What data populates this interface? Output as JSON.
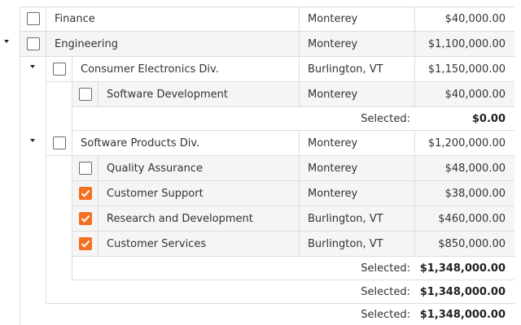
{
  "rows": {
    "finance": {
      "name": "Finance",
      "location": "Monterey",
      "budget": "$40,000.00"
    },
    "engineering": {
      "name": "Engineering",
      "location": "Monterey",
      "budget": "$1,100,000.00"
    },
    "consumer_electronics": {
      "name": "Consumer Electronics Div.",
      "location": "Burlington, VT",
      "budget": "$1,150,000.00"
    },
    "software_development": {
      "name": "Software Development",
      "location": "Monterey",
      "budget": "$40,000.00"
    },
    "software_products": {
      "name": "Software Products Div.",
      "location": "Monterey",
      "budget": "$1,200,000.00"
    },
    "quality_assurance": {
      "name": "Quality Assurance",
      "location": "Monterey",
      "budget": "$48,000.00"
    },
    "customer_support": {
      "name": "Customer Support",
      "location": "Monterey",
      "budget": "$38,000.00"
    },
    "research_development": {
      "name": "Research and Development",
      "location": "Burlington, VT",
      "budget": "$460,000.00"
    },
    "customer_services": {
      "name": "Customer Services",
      "location": "Burlington, VT",
      "budget": "$850,000.00"
    }
  },
  "checked": {
    "finance": false,
    "engineering": false,
    "consumer_electronics": false,
    "software_development": false,
    "software_products": false,
    "quality_assurance": false,
    "customer_support": true,
    "research_development": true,
    "customer_services": true
  },
  "summaries": {
    "label": "Selected:",
    "consumer_electronics_selected": "$0.00",
    "software_products_selected": "$1,348,000.00",
    "engineering_selected": "$1,348,000.00",
    "total_selected": "$1,348,000.00"
  },
  "colors": {
    "accent": "#f37021",
    "border": "#dddddd",
    "alt_row": "#f5f5f5"
  }
}
